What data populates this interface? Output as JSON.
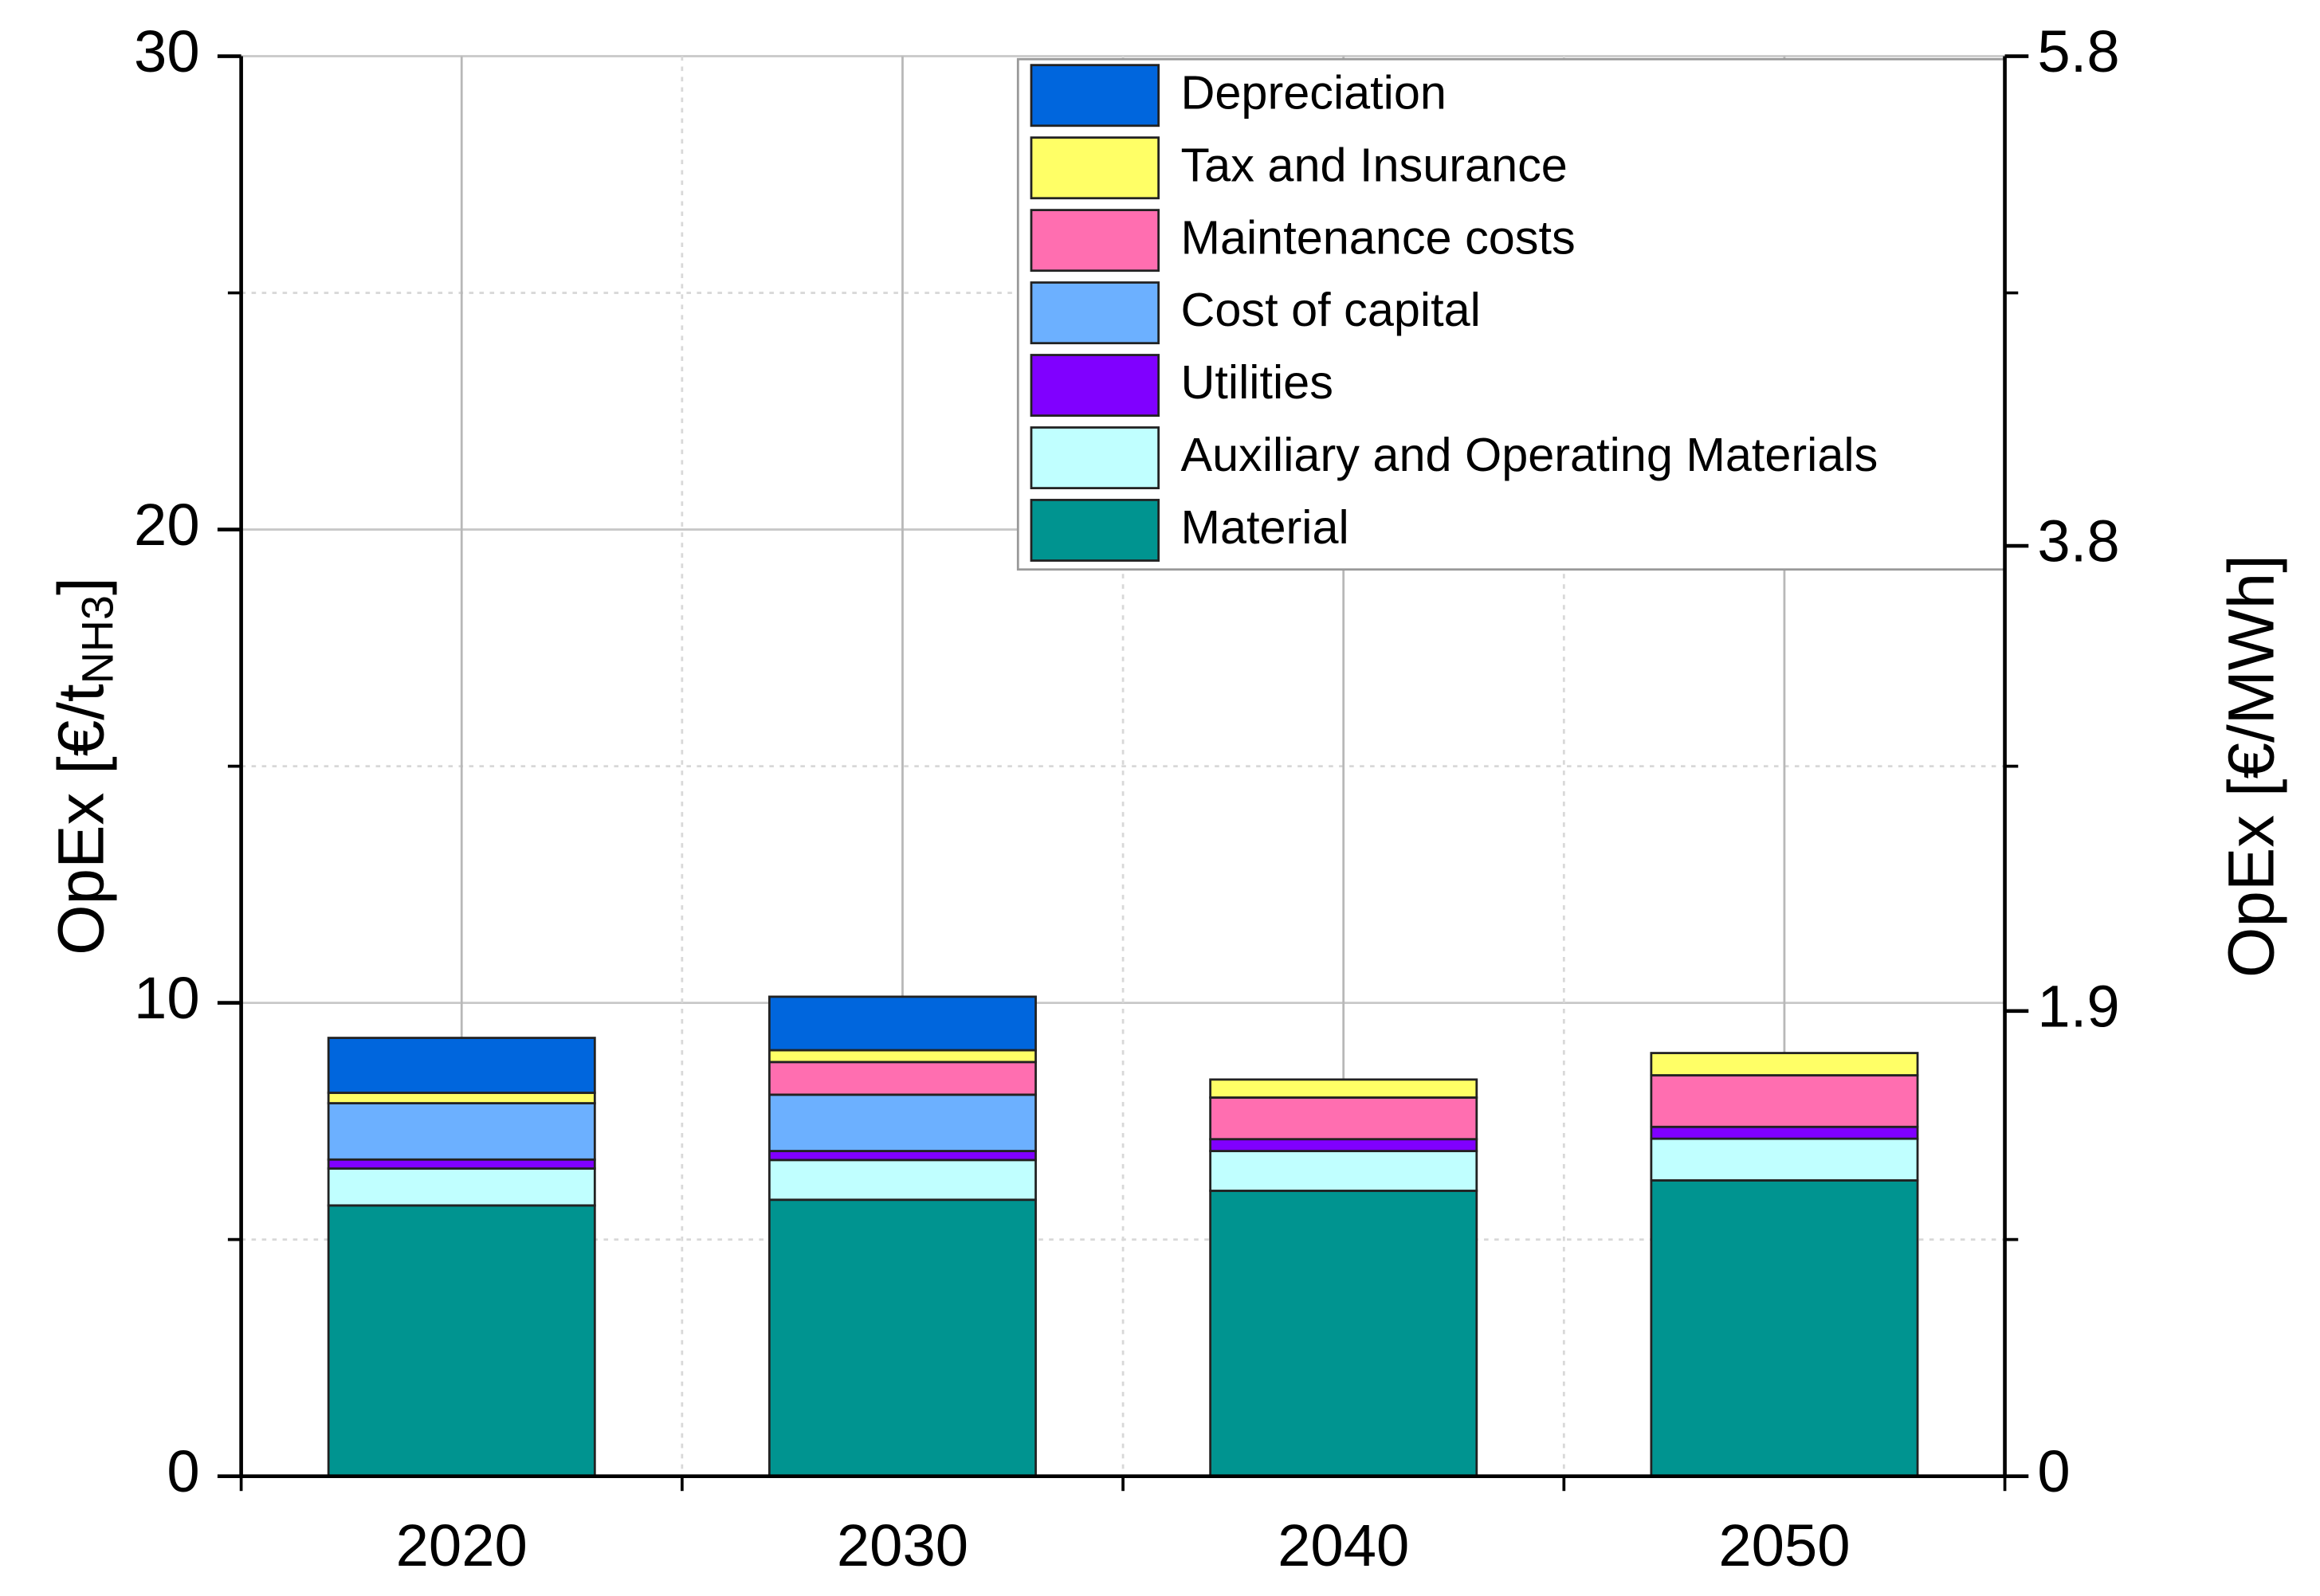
{
  "chart_data": {
    "type": "stacked_bar",
    "y_label": {
      "text": "OpEx [€/t",
      "sub": "NH3",
      "end": "]"
    },
    "y2_label": "OpEx [€/MWh]",
    "categories": [
      "2020",
      "2030",
      "2040",
      "2050"
    ],
    "series": [
      {
        "name": "Material",
        "color": "#009490",
        "values": [
          5.72,
          5.84,
          6.03,
          6.25
        ]
      },
      {
        "name": "Auxiliary and Operating Materials",
        "color": "#c0ffff",
        "values": [
          0.78,
          0.84,
          0.84,
          0.88
        ]
      },
      {
        "name": "Utilities",
        "color": "#8000ff",
        "values": [
          0.19,
          0.19,
          0.25,
          0.25
        ]
      },
      {
        "name": "Cost of capital",
        "color": "#6cb0ff",
        "values": [
          1.19,
          1.19,
          0,
          0
        ]
      },
      {
        "name": "Maintenance  costs",
        "color": "#ff6eb0",
        "values": [
          0,
          0.69,
          0.88,
          1.09
        ]
      },
      {
        "name": "Tax  and Insurance",
        "color": "#ffff66",
        "values": [
          0.22,
          0.25,
          0.38,
          0.47
        ]
      },
      {
        "name": "Depreciation",
        "color": "#0066dd",
        "values": [
          1.16,
          1.13,
          0,
          0
        ]
      }
    ],
    "ylim": [
      0,
      30
    ],
    "yticks": [
      0,
      10,
      20,
      30
    ],
    "minor_yticks": [
      5,
      15,
      25
    ],
    "y2lim": [
      0,
      5.8
    ],
    "y2ticks": [
      0,
      1.9,
      3.8,
      5.8
    ],
    "grid": true,
    "legend": "top-right"
  }
}
